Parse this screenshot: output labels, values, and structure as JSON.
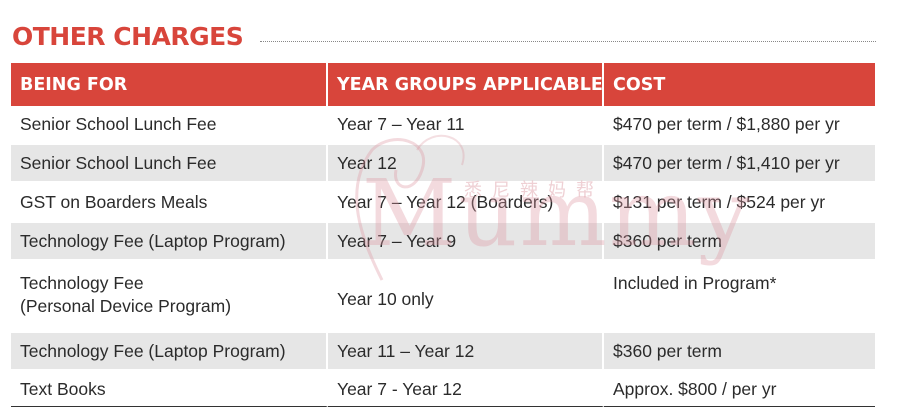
{
  "section": {
    "title": "OTHER CHARGES"
  },
  "table": {
    "headers": [
      "BEING FOR",
      "YEAR GROUPS APPLICABLE",
      "COST"
    ],
    "rows": [
      {
        "being_for": "Senior School Lunch Fee",
        "being_for_2": "",
        "years": "Year 7 – Year 11",
        "cost": "$470 per term / $1,880 per yr"
      },
      {
        "being_for": "Senior School Lunch Fee",
        "being_for_2": "",
        "years": "Year 12",
        "cost": "$470 per term / $1,410 per yr"
      },
      {
        "being_for": "GST on Boarders Meals",
        "being_for_2": "",
        "years": "Year 7 – Year 12 (Boarders)",
        "cost": "$131 per term / $524 per yr"
      },
      {
        "being_for": "Technology Fee (Laptop Program)",
        "being_for_2": "",
        "years": "Year 7 – Year 9",
        "cost": "$360 per term"
      },
      {
        "being_for": "Technology Fee",
        "being_for_2": "(Personal Device Program)",
        "years": "Year 10 only",
        "cost": "Included in Program*"
      },
      {
        "being_for": "Technology Fee (Laptop Program)",
        "being_for_2": "",
        "years": "Year 11 – Year 12",
        "cost": "$360 per term"
      },
      {
        "being_for": "Text Books",
        "being_for_2": "",
        "years": "Year 7 - Year 12",
        "cost": "Approx. $800 / per yr"
      }
    ]
  },
  "watermark": {
    "brand": "Mummy",
    "tagline": "SYDNEY",
    "chinese": "悉尼辣妈帮"
  },
  "colors": {
    "accent": "#d8453b",
    "row_shade": "#e6e6e6",
    "text": "#2b2b2b"
  }
}
